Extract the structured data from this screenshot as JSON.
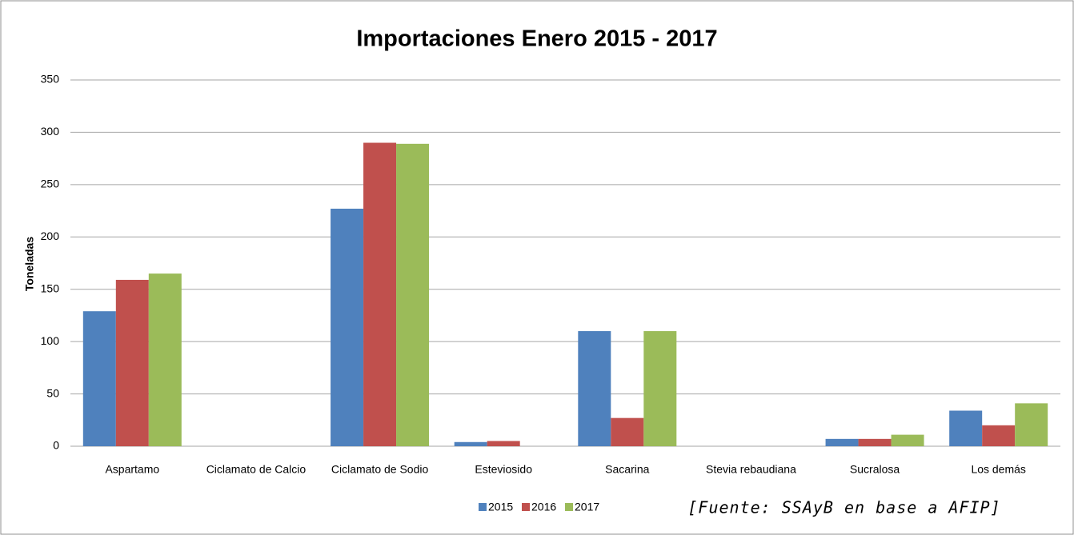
{
  "chart_data": {
    "type": "bar",
    "title": "Importaciones Enero 2015 - 2017",
    "y_label": "Toneladas",
    "annotation": "[Fuente: SSAyB en base a AFIP]",
    "categories": [
      "Aspartamo",
      "Ciclamato de Calcio",
      "Ciclamato de Sodio",
      "Esteviosido",
      "Sacarina",
      "Stevia rebaudiana",
      "Sucralosa",
      "Los demás"
    ],
    "series": [
      {
        "name": "2015",
        "color": "#4f81bd",
        "values": [
          129,
          0,
          227,
          4,
          110,
          0,
          7,
          34
        ]
      },
      {
        "name": "2016",
        "color": "#c0504d",
        "values": [
          159,
          0,
          290,
          5,
          27,
          0,
          7,
          20
        ]
      },
      {
        "name": "2017",
        "color": "#9bbb59",
        "values": [
          165,
          0,
          289,
          0,
          110,
          0,
          11,
          41
        ]
      }
    ],
    "ylim": [
      0,
      350
    ],
    "yticks": [
      0,
      50,
      100,
      150,
      200,
      250,
      300,
      350
    ],
    "grid": true,
    "legend": "bottom"
  }
}
